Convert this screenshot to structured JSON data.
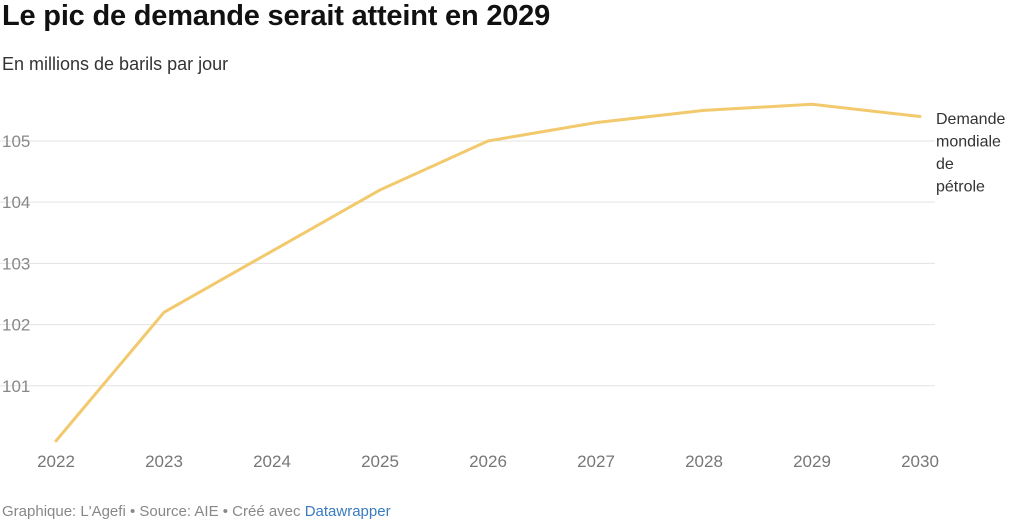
{
  "chart_data": {
    "type": "line",
    "title": "Le pic de demande serait atteint en 2029",
    "subtitle": "En millions de barils par jour",
    "x": [
      "2022",
      "2023",
      "2024",
      "2025",
      "2026",
      "2027",
      "2028",
      "2029",
      "2030"
    ],
    "series": [
      {
        "name": "Demande mondiale de pétrole",
        "name_lines": [
          "Demande",
          "mondiale",
          "de",
          "pétrole"
        ],
        "values": [
          100.1,
          102.2,
          103.2,
          104.2,
          105.0,
          105.3,
          105.5,
          105.6,
          105.4
        ],
        "color": "#f2c96d"
      }
    ],
    "yticks": [
      101,
      102,
      103,
      104,
      105
    ],
    "ylim": [
      100.0,
      105.8
    ],
    "grid": true,
    "legend": "end-of-line label"
  },
  "footer": {
    "text": "Graphique: L'Agefi • Source: AIE • Créé avec ",
    "link": "Datawrapper"
  }
}
